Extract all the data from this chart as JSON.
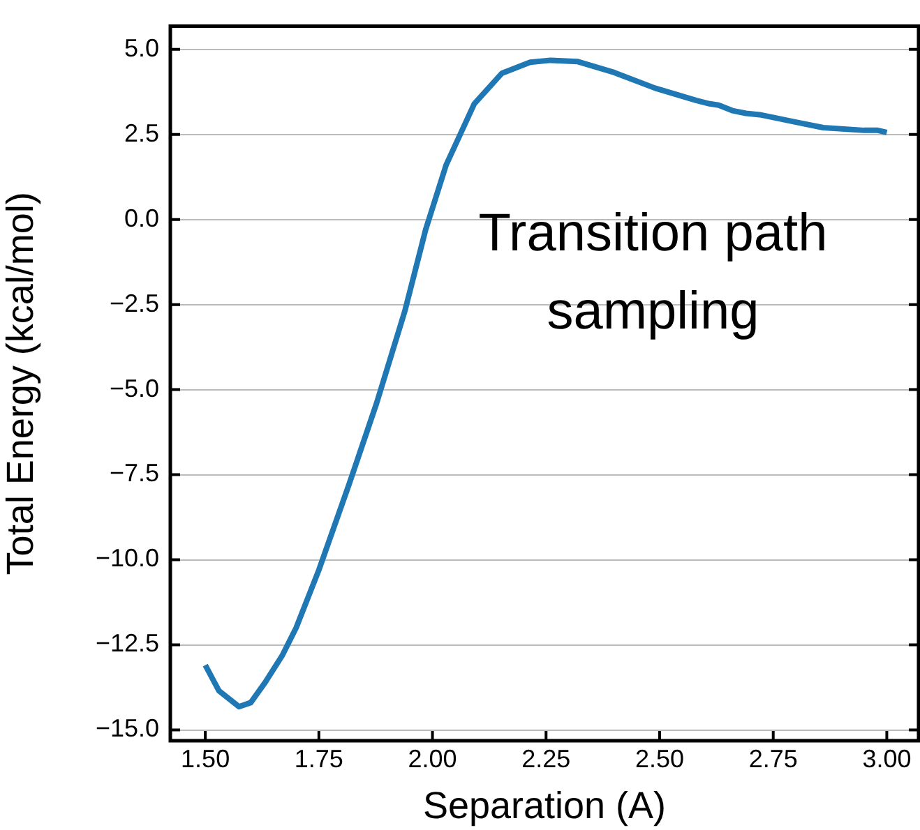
{
  "chart_data": {
    "type": "line",
    "xlabel": "Separation (A)",
    "ylabel": "Total Energy (kcal/mol)",
    "annotations": [
      "Transition path\nsampling"
    ],
    "series": [
      {
        "color": "#1f77b4",
        "x": [
          1.5,
          1.53,
          1.574,
          1.6,
          1.632,
          1.67,
          1.7,
          1.75,
          1.816,
          1.877,
          1.939,
          1.985,
          2.03,
          2.092,
          2.153,
          2.215,
          2.26,
          2.32,
          2.4,
          2.49,
          2.58,
          2.61,
          2.63,
          2.66,
          2.69,
          2.72,
          2.75,
          2.8,
          2.86,
          2.95,
          2.98,
          3.0
        ],
        "values": [
          -13.1,
          -13.85,
          -14.32,
          -14.2,
          -13.6,
          -12.8,
          -12.0,
          -10.3,
          -7.8,
          -5.4,
          -2.7,
          -0.3,
          1.6,
          3.4,
          4.3,
          4.62,
          4.68,
          4.64,
          4.32,
          3.86,
          3.5,
          3.4,
          3.36,
          3.2,
          3.12,
          3.08,
          3.0,
          2.86,
          2.7,
          2.62,
          2.62,
          2.56
        ]
      }
    ],
    "xlim": [
      1.423,
      3.07
    ],
    "ylim": [
      -15.32,
      5.68
    ],
    "xticks": [
      {
        "value": 1.5,
        "label": "1.50"
      },
      {
        "value": 1.75,
        "label": "1.75"
      },
      {
        "value": 2.0,
        "label": "2.00"
      },
      {
        "value": 2.25,
        "label": "2.25"
      },
      {
        "value": 2.5,
        "label": "2.50"
      },
      {
        "value": 2.75,
        "label": "2.75"
      },
      {
        "value": 3.0,
        "label": "3.00"
      }
    ],
    "yticks": [
      {
        "value": 5,
        "label": "5.0"
      },
      {
        "value": 2.5,
        "label": "2.5"
      },
      {
        "value": 0,
        "label": "0.0"
      },
      {
        "value": -2.5,
        "label": "−2.5"
      },
      {
        "value": -5,
        "label": "−5.0"
      },
      {
        "value": -7.5,
        "label": "−7.5"
      },
      {
        "value": -10,
        "label": "−10.0"
      },
      {
        "value": -12.5,
        "label": "−12.5"
      },
      {
        "value": -15,
        "label": "−15.0"
      }
    ],
    "grid": "y",
    "legend": false,
    "marker": "none",
    "line_style": "solid"
  }
}
